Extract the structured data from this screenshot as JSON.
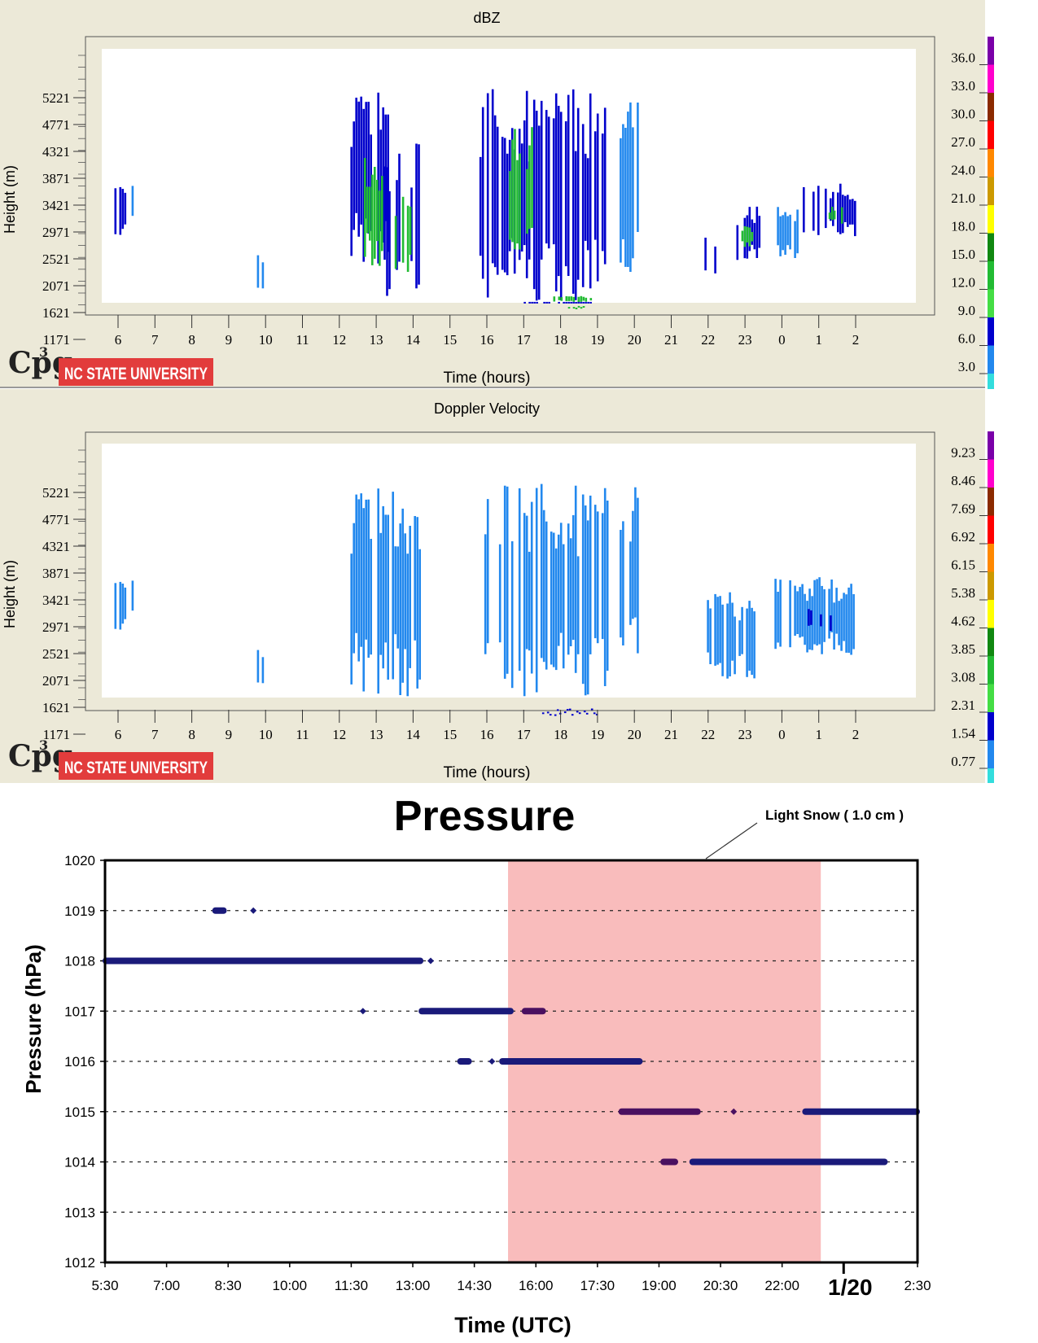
{
  "colors": {
    "panel_bg": "#ece9d8",
    "plot_bg": "#ffffff",
    "snow_band": "#f9bcbc",
    "pressure_marker": "#1a1a7a",
    "pressure_marker_dark": "#4a1060",
    "ncsu_red": "#e23c3c",
    "radar_light": "#2288ee",
    "radar_mid": "#0000cc",
    "radar_green": "#22bb33"
  },
  "logos": {
    "cpg": "Cpg",
    "cpg_sup": "3",
    "ncsu": "NC STATE UNIVERSITY"
  },
  "chart_data": [
    {
      "type": "heatmap",
      "title": "dBZ",
      "xlabel": "Time (hours)",
      "ylabel": "Height (m)",
      "x_ticks": [
        "6",
        "7",
        "8",
        "9",
        "10",
        "11",
        "12",
        "13",
        "14",
        "15",
        "16",
        "17",
        "18",
        "19",
        "20",
        "21",
        "22",
        "23",
        "0",
        "1",
        "2"
      ],
      "y_ticks": [
        "5221",
        "4771",
        "4321",
        "3871",
        "3421",
        "2971",
        "2521",
        "2071",
        "1621",
        "1171"
      ],
      "colorbar_labels": [
        "36.0",
        "33.0",
        "30.0",
        "27.0",
        "24.0",
        "21.0",
        "18.0",
        "15.0",
        "12.0",
        "9.0",
        "6.0",
        "3.0"
      ],
      "colorbar_colors": [
        "#7a00a8",
        "#ff00cc",
        "#8b2a00",
        "#ff0000",
        "#ff8800",
        "#cc9900",
        "#ffff00",
        "#118811",
        "#22bb33",
        "#44dd44",
        "#0000cc",
        "#2288ee",
        "#33dddd"
      ],
      "echo_regions": [
        {
          "t0": 5.9,
          "t1": 6.2,
          "h0": 2900,
          "h1": 3900,
          "level": "mid"
        },
        {
          "t0": 6.3,
          "t1": 6.4,
          "h0": 3100,
          "h1": 3800,
          "level": "light"
        },
        {
          "t0": 9.7,
          "t1": 9.9,
          "h0": 2000,
          "h1": 2700,
          "level": "light"
        },
        {
          "t0": 12.3,
          "t1": 13.3,
          "h0": 2400,
          "h1": 5400,
          "level": "mid"
        },
        {
          "t0": 12.6,
          "t1": 13.2,
          "h0": 2400,
          "h1": 4300,
          "level": "green"
        },
        {
          "t0": 13.2,
          "t1": 14.2,
          "h0": 1800,
          "h1": 4500,
          "level": "mid"
        },
        {
          "t0": 13.5,
          "t1": 13.9,
          "h0": 2300,
          "h1": 3600,
          "level": "green"
        },
        {
          "t0": 15.8,
          "t1": 19.3,
          "h0": 1400,
          "h1": 5400,
          "level": "mid"
        },
        {
          "t0": 16.6,
          "t1": 17.2,
          "h0": 2400,
          "h1": 4800,
          "level": "green"
        },
        {
          "t0": 17.8,
          "t1": 18.8,
          "h0": 1300,
          "h1": 1900,
          "level": "green"
        },
        {
          "t0": 17.0,
          "t1": 18.8,
          "h0": 1100,
          "h1": 1800,
          "level": "mid"
        },
        {
          "t0": 18.2,
          "t1": 18.6,
          "h0": 1300,
          "h1": 1700,
          "level": "green"
        },
        {
          "t0": 19.6,
          "t1": 20.1,
          "h0": 2300,
          "h1": 5400,
          "level": "light"
        },
        {
          "t0": 21.9,
          "t1": 22.3,
          "h0": 2100,
          "h1": 3000,
          "level": "mid"
        },
        {
          "t0": 22.7,
          "t1": 23.4,
          "h0": 2500,
          "h1": 3400,
          "level": "mid"
        },
        {
          "t0": 22.9,
          "t1": 23.2,
          "h0": 2700,
          "h1": 3100,
          "level": "green"
        },
        {
          "t0": 23.8,
          "t1": 24.4,
          "h0": 2500,
          "h1": 3500,
          "level": "light"
        },
        {
          "t0": 24.5,
          "t1": 26.0,
          "h0": 2900,
          "h1": 3800,
          "level": "mid"
        },
        {
          "t0": 25.2,
          "t1": 25.6,
          "h0": 3100,
          "h1": 3400,
          "level": "green"
        }
      ]
    },
    {
      "type": "heatmap",
      "title": "Doppler Velocity",
      "xlabel": "Time (hours)",
      "ylabel": "Height (m)",
      "x_ticks": [
        "6",
        "7",
        "8",
        "9",
        "10",
        "11",
        "12",
        "13",
        "14",
        "15",
        "16",
        "17",
        "18",
        "19",
        "20",
        "21",
        "22",
        "23",
        "0",
        "1",
        "2"
      ],
      "y_ticks": [
        "5221",
        "4771",
        "4321",
        "3871",
        "3421",
        "2971",
        "2521",
        "2071",
        "1621",
        "1171"
      ],
      "colorbar_labels": [
        "9.23",
        "8.46",
        "7.69",
        "6.92",
        "6.15",
        "5.38",
        "4.62",
        "3.85",
        "3.08",
        "2.31",
        "1.54",
        "0.77"
      ],
      "colorbar_colors": [
        "#7a00a8",
        "#ff00cc",
        "#8b2a00",
        "#ff0000",
        "#ff8800",
        "#cc9900",
        "#ffff00",
        "#118811",
        "#22bb33",
        "#44dd44",
        "#0000cc",
        "#2288ee",
        "#33dddd"
      ],
      "echo_regions": [
        {
          "t0": 5.9,
          "t1": 6.2,
          "h0": 2900,
          "h1": 3900,
          "level": "light"
        },
        {
          "t0": 6.3,
          "t1": 6.4,
          "h0": 3100,
          "h1": 3800,
          "level": "light"
        },
        {
          "t0": 9.7,
          "t1": 9.9,
          "h0": 2000,
          "h1": 2700,
          "level": "light"
        },
        {
          "t0": 12.3,
          "t1": 14.2,
          "h0": 1800,
          "h1": 5400,
          "level": "light"
        },
        {
          "t0": 15.8,
          "t1": 19.3,
          "h0": 1200,
          "h1": 5400,
          "level": "light"
        },
        {
          "t0": 17.5,
          "t1": 19.0,
          "h0": 1100,
          "h1": 1500,
          "level": "mid"
        },
        {
          "t0": 19.6,
          "t1": 20.1,
          "h0": 2300,
          "h1": 5400,
          "level": "light"
        },
        {
          "t0": 21.9,
          "t1": 23.4,
          "h0": 2100,
          "h1": 3600,
          "level": "light"
        },
        {
          "t0": 23.8,
          "t1": 26.0,
          "h0": 2500,
          "h1": 3800,
          "level": "light"
        },
        {
          "t0": 24.7,
          "t1": 25.3,
          "h0": 2900,
          "h1": 3300,
          "level": "mid"
        }
      ]
    },
    {
      "type": "scatter",
      "title": "Pressure",
      "xlabel": "Time (UTC)",
      "ylabel": "Pressure (hPa)",
      "x_ticks": [
        "5:30",
        "7:00",
        "8:30",
        "10:00",
        "11:30",
        "13:00",
        "14:30",
        "16:00",
        "17:30",
        "19:00",
        "20:30",
        "22:00",
        "1/20",
        "2:30"
      ],
      "y_ticks": [
        "1012",
        "1013",
        "1014",
        "1015",
        "1016",
        "1017",
        "1018",
        "1019",
        "1020"
      ],
      "ylim": [
        1012,
        1020
      ],
      "annotation": "Light Snow ( 1.0 cm )",
      "shaded_region": {
        "start": "15:55",
        "end": "24:00"
      },
      "series": [
        {
          "values": [
            {
              "start": "8:20",
              "end": "8:35",
              "y": 1019
            },
            {
              "start": "9:20",
              "end": "9:20",
              "y": 1019
            },
            {
              "start": "5:30",
              "end": "13:40",
              "y": 1018
            },
            {
              "start": "13:55",
              "end": "13:55",
              "y": 1018
            },
            {
              "start": "12:10",
              "end": "12:10",
              "y": 1017
            },
            {
              "start": "13:40",
              "end": "16:00",
              "y": 1017
            },
            {
              "start": "16:20",
              "end": "16:50",
              "y": 1017
            },
            {
              "start": "14:40",
              "end": "14:55",
              "y": 1016
            },
            {
              "start": "15:30",
              "end": "15:30",
              "y": 1016
            },
            {
              "start": "15:45",
              "end": "19:20",
              "y": 1016
            },
            {
              "start": "18:50",
              "end": "20:50",
              "y": 1015
            },
            {
              "start": "21:45",
              "end": "21:45",
              "y": 1015
            },
            {
              "start": "23:35",
              "end": "26:30",
              "y": 1015
            },
            {
              "start": "19:55",
              "end": "20:15",
              "y": 1014
            },
            {
              "start": "20:40",
              "end": "25:40",
              "y": 1014
            }
          ]
        }
      ]
    }
  ]
}
